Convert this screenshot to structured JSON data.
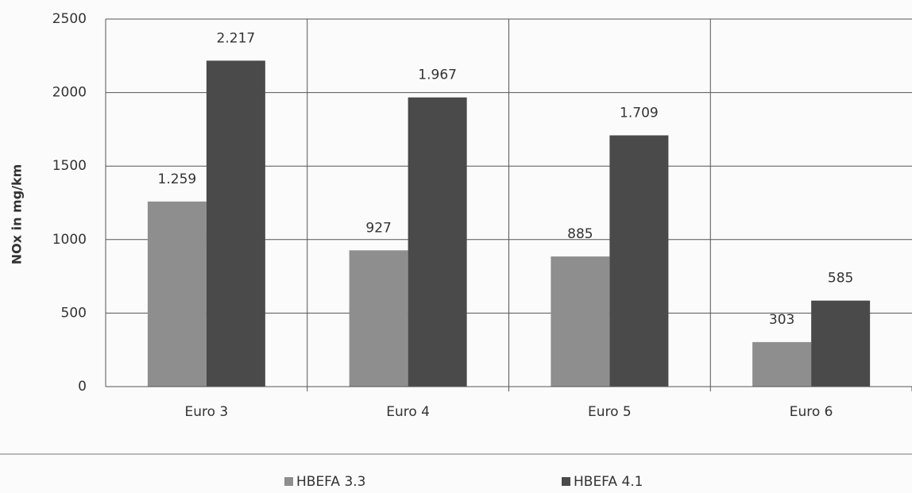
{
  "chart_data": {
    "type": "bar",
    "y_label": "NOx in mg/km",
    "categories": [
      "Euro 3",
      "Euro 4",
      "Euro 5",
      "Euro 6"
    ],
    "series": [
      {
        "name": "HBEFA 3.3",
        "color": "#8e8e8e",
        "values": [
          1259,
          927,
          885,
          303
        ],
        "value_labels": [
          "1.259",
          "927",
          "885",
          "303"
        ]
      },
      {
        "name": "HBEFA 4.1",
        "color": "#4a4a4a",
        "values": [
          2217,
          1967,
          1709,
          585
        ],
        "value_labels": [
          "2.217",
          "1.967",
          "1.709",
          "585"
        ]
      }
    ],
    "ylim": [
      0,
      2500
    ],
    "yticks": [
      0,
      500,
      1000,
      1500,
      2000,
      2500
    ],
    "grid": true
  }
}
